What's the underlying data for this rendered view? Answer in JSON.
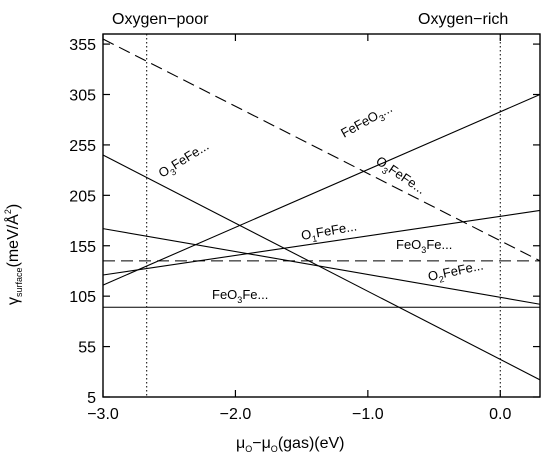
{
  "chart_data": {
    "type": "line",
    "title": "",
    "region_labels": {
      "left": "Oxygen−poor",
      "right": "Oxygen−rich"
    },
    "xlabel": {
      "main": "μ",
      "sub1": "O",
      "mid": "−μ",
      "sub2": "O",
      "tail": "(gas)(eV)"
    },
    "ylabel": {
      "main": "γ",
      "sub": "surface",
      "tail": "(meV/Å",
      "sup": "2",
      "close": ")"
    },
    "xlim": [
      -3.0,
      0.3
    ],
    "ylim": [
      5,
      365
    ],
    "x_ticks": [
      -3.0,
      -2.0,
      -1.0,
      0.0
    ],
    "x_tick_labels": [
      "−3.0",
      "−2.0",
      "−1.0",
      "0.0"
    ],
    "y_ticks": [
      5,
      55,
      105,
      155,
      205,
      255,
      305,
      355
    ],
    "y_tick_labels": [
      "5",
      "55",
      "105",
      "155",
      "205",
      "255",
      "305",
      "355"
    ],
    "vlines": [
      -2.67,
      0.0
    ],
    "series": [
      {
        "label_parts": [
          "O",
          "3",
          "FeFe..."
        ],
        "style": "solid",
        "x": [
          -3.0,
          0.3
        ],
        "y": [
          245,
          22
        ]
      },
      {
        "label_parts": [
          "FeFeO",
          "3",
          "..."
        ],
        "style": "solid",
        "x": [
          -3.0,
          0.3
        ],
        "y": [
          116,
          305
        ]
      },
      {
        "label_parts": [
          "O",
          "3",
          "FeFe..."
        ],
        "style": "dashed",
        "x": [
          -3.0,
          0.3
        ],
        "y": [
          360,
          140
        ]
      },
      {
        "label_parts": [
          "O",
          "1",
          "FeFe..."
        ],
        "style": "solid",
        "x": [
          -3.0,
          0.3
        ],
        "y": [
          126,
          190
        ]
      },
      {
        "label_parts": [
          "FeO",
          "3",
          "Fe..."
        ],
        "style": "dashed",
        "x": [
          -3.0,
          0.3
        ],
        "y": [
          140,
          140
        ]
      },
      {
        "label_parts": [
          "O",
          "2",
          "FeFe..."
        ],
        "style": "solid",
        "x": [
          -3.0,
          0.3
        ],
        "y": [
          172,
          97
        ]
      },
      {
        "label_parts": [
          "FeO",
          "3",
          "Fe..."
        ],
        "style": "solid",
        "x": [
          -3.0,
          0.3
        ],
        "y": [
          94,
          94
        ]
      }
    ]
  }
}
